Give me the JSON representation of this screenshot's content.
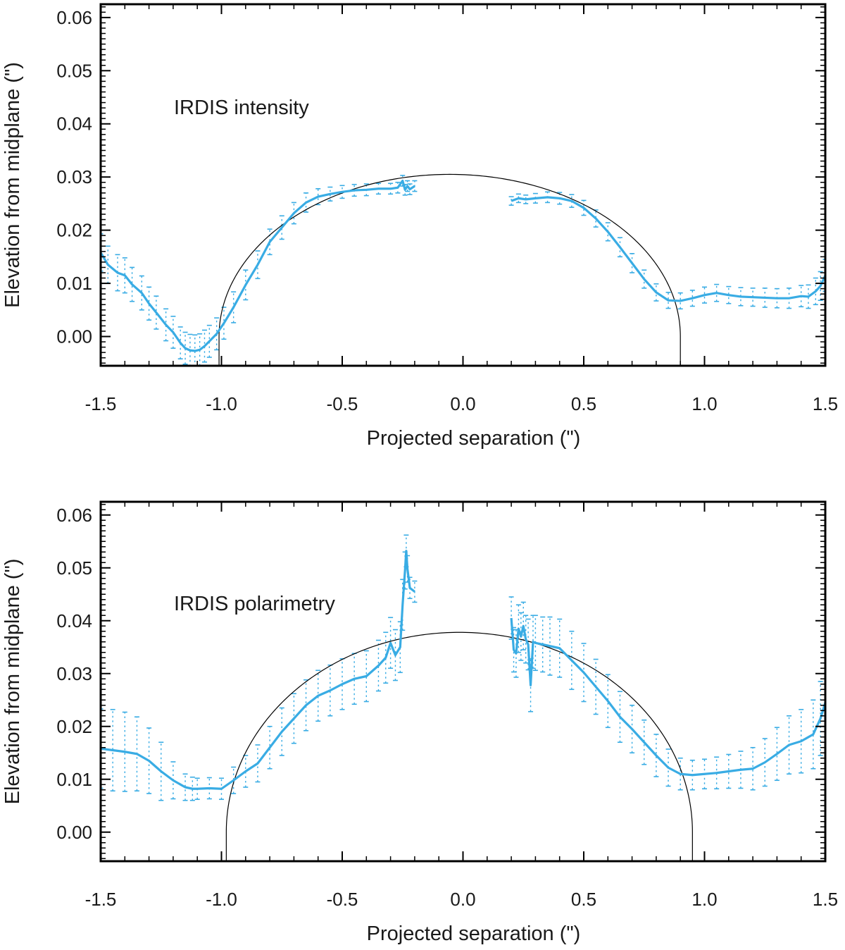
{
  "colors": {
    "series": "#39ACE4",
    "model": "#000000",
    "axis": "#000000"
  },
  "chart_data": [
    {
      "type": "line",
      "id": "intensity",
      "annotation": "IRDIS intensity",
      "xlabel": "Projected separation (\")",
      "ylabel": "Elevation from midplane (\")",
      "xlim": [
        -1.5,
        1.5
      ],
      "ylim": [
        -0.0055,
        0.0625
      ],
      "xticks": [
        -1.5,
        -1.0,
        -0.5,
        0.0,
        0.5,
        1.0,
        1.5
      ],
      "xtick_labels": [
        "-1.5",
        "-1.0",
        "-0.5",
        "0.0",
        "0.5",
        "1.0",
        "1.5"
      ],
      "yticks": [
        0.0,
        0.01,
        0.02,
        0.03,
        0.04,
        0.05,
        0.06
      ],
      "ytick_labels": [
        "0.00",
        "0.01",
        "0.02",
        "0.03",
        "0.04",
        "0.05",
        "0.06"
      ],
      "model_ellipse": {
        "center_x": -0.055,
        "half_width": 0.955,
        "height": 0.0305
      },
      "segments": [
        {
          "name": "left",
          "x": [
            -1.5,
            -1.47,
            -1.43,
            -1.4,
            -1.37,
            -1.33,
            -1.3,
            -1.27,
            -1.23,
            -1.2,
            -1.17,
            -1.15,
            -1.13,
            -1.11,
            -1.09,
            -1.07,
            -1.05,
            -1.02,
            -0.99,
            -0.95,
            -0.9,
            -0.85,
            -0.8,
            -0.75,
            -0.7,
            -0.65,
            -0.6,
            -0.55,
            -0.5,
            -0.45,
            -0.4,
            -0.35,
            -0.3,
            -0.27,
            -0.25,
            -0.24,
            -0.23,
            -0.22,
            -0.2
          ],
          "y": [
            0.0158,
            0.0135,
            0.012,
            0.0115,
            0.0098,
            0.0082,
            0.0062,
            0.0045,
            0.0022,
            0.0008,
            -0.0012,
            -0.0022,
            -0.0026,
            -0.0027,
            -0.0025,
            -0.0018,
            -0.0009,
            0.0005,
            0.0025,
            0.0055,
            0.0097,
            0.0135,
            0.0178,
            0.0205,
            0.0232,
            0.0252,
            0.0263,
            0.0268,
            0.0272,
            0.0275,
            0.0276,
            0.0278,
            0.0278,
            0.028,
            0.0293,
            0.0276,
            0.0283,
            0.0277,
            0.0283
          ],
          "err": [
            0.0035,
            0.0035,
            0.0034,
            0.0033,
            0.0032,
            0.0032,
            0.0031,
            0.0031,
            0.003,
            0.003,
            0.003,
            0.003,
            0.003,
            0.003,
            0.003,
            0.003,
            0.003,
            0.003,
            0.003,
            0.0029,
            0.0028,
            0.0026,
            0.0024,
            0.0022,
            0.002,
            0.0018,
            0.0015,
            0.0013,
            0.0012,
            0.0011,
            0.0011,
            0.001,
            0.001,
            0.001,
            0.001,
            0.001,
            0.001,
            0.001,
            0.001
          ]
        },
        {
          "name": "right",
          "x": [
            0.2,
            0.23,
            0.26,
            0.3,
            0.35,
            0.4,
            0.45,
            0.5,
            0.55,
            0.6,
            0.65,
            0.7,
            0.75,
            0.8,
            0.85,
            0.9,
            0.95,
            1.0,
            1.05,
            1.1,
            1.15,
            1.2,
            1.25,
            1.3,
            1.35,
            1.4,
            1.43,
            1.46,
            1.48,
            1.5
          ],
          "y": [
            0.0255,
            0.026,
            0.0258,
            0.026,
            0.0262,
            0.026,
            0.0255,
            0.0242,
            0.0222,
            0.0197,
            0.0168,
            0.0138,
            0.0108,
            0.0083,
            0.0068,
            0.0067,
            0.0072,
            0.0078,
            0.0082,
            0.0078,
            0.0075,
            0.0074,
            0.0073,
            0.0072,
            0.0072,
            0.0076,
            0.0075,
            0.0085,
            0.0095,
            0.0115
          ],
          "err": [
            0.0008,
            0.0008,
            0.0008,
            0.0009,
            0.001,
            0.0011,
            0.0012,
            0.0014,
            0.0016,
            0.0017,
            0.0018,
            0.0018,
            0.0017,
            0.0016,
            0.0015,
            0.0015,
            0.0015,
            0.0015,
            0.0016,
            0.0016,
            0.0017,
            0.0017,
            0.0018,
            0.0018,
            0.0019,
            0.002,
            0.0022,
            0.0025,
            0.0027,
            0.003
          ]
        }
      ]
    },
    {
      "type": "line",
      "id": "polarimetry",
      "annotation": "IRDIS polarimetry",
      "xlabel": "Projected separation (\")",
      "ylabel": "Elevation from midplane (\")",
      "xlim": [
        -1.5,
        1.5
      ],
      "ylim": [
        -0.0055,
        0.0625
      ],
      "xticks": [
        -1.5,
        -1.0,
        -0.5,
        0.0,
        0.5,
        1.0,
        1.5
      ],
      "xtick_labels": [
        "-1.5",
        "-1.0",
        "-0.5",
        "0.0",
        "0.5",
        "1.0",
        "1.5"
      ],
      "yticks": [
        0.0,
        0.01,
        0.02,
        0.03,
        0.04,
        0.05,
        0.06
      ],
      "ytick_labels": [
        "0.00",
        "0.01",
        "0.02",
        "0.03",
        "0.04",
        "0.05",
        "0.06"
      ],
      "model_ellipse": {
        "center_x": -0.015,
        "half_width": 0.965,
        "height": 0.0378
      },
      "segments": [
        {
          "name": "left",
          "x": [
            -1.5,
            -1.45,
            -1.4,
            -1.35,
            -1.3,
            -1.25,
            -1.2,
            -1.15,
            -1.12,
            -1.1,
            -1.05,
            -1.0,
            -0.95,
            -0.9,
            -0.85,
            -0.8,
            -0.75,
            -0.7,
            -0.65,
            -0.6,
            -0.55,
            -0.5,
            -0.45,
            -0.4,
            -0.35,
            -0.32,
            -0.3,
            -0.28,
            -0.26,
            -0.25,
            -0.24,
            -0.235,
            -0.23,
            -0.22,
            -0.2
          ],
          "y": [
            0.0158,
            0.0155,
            0.0152,
            0.0148,
            0.0135,
            0.0115,
            0.0098,
            0.0085,
            0.0082,
            0.0082,
            0.0083,
            0.0082,
            0.0098,
            0.0115,
            0.013,
            0.016,
            0.019,
            0.0215,
            0.024,
            0.0258,
            0.0268,
            0.028,
            0.029,
            0.0295,
            0.0315,
            0.033,
            0.0358,
            0.0335,
            0.035,
            0.043,
            0.0495,
            0.0532,
            0.0498,
            0.0462,
            0.0455
          ],
          "err": [
            0.0075,
            0.0077,
            0.0075,
            0.007,
            0.0062,
            0.0055,
            0.0035,
            0.0025,
            0.0022,
            0.002,
            0.002,
            0.002,
            0.0025,
            0.003,
            0.0035,
            0.004,
            0.0045,
            0.0047,
            0.0048,
            0.0048,
            0.0048,
            0.0048,
            0.0048,
            0.0048,
            0.0048,
            0.0048,
            0.0048,
            0.0048,
            0.0048,
            0.0048,
            0.0035,
            0.003,
            0.0025,
            0.002,
            0.002
          ]
        },
        {
          "name": "right",
          "x": [
            0.2,
            0.21,
            0.22,
            0.23,
            0.24,
            0.25,
            0.26,
            0.27,
            0.28,
            0.29,
            0.3,
            0.33,
            0.36,
            0.4,
            0.45,
            0.5,
            0.55,
            0.6,
            0.65,
            0.7,
            0.75,
            0.8,
            0.85,
            0.9,
            0.95,
            1.0,
            1.05,
            1.1,
            1.15,
            1.2,
            1.25,
            1.3,
            1.35,
            1.4,
            1.45,
            1.48,
            1.5
          ],
          "y": [
            0.0405,
            0.0345,
            0.0338,
            0.0385,
            0.037,
            0.039,
            0.0365,
            0.0355,
            0.0278,
            0.036,
            0.0358,
            0.0355,
            0.0352,
            0.0348,
            0.0325,
            0.0302,
            0.0275,
            0.0248,
            0.0218,
            0.0195,
            0.017,
            0.0145,
            0.0122,
            0.011,
            0.0108,
            0.011,
            0.0112,
            0.0115,
            0.0118,
            0.012,
            0.0132,
            0.0148,
            0.0165,
            0.0172,
            0.0185,
            0.0215,
            0.0245
          ],
          "err": [
            0.004,
            0.0042,
            0.0045,
            0.0045,
            0.0045,
            0.0045,
            0.0045,
            0.0048,
            0.005,
            0.005,
            0.0052,
            0.0052,
            0.0055,
            0.0055,
            0.0055,
            0.0055,
            0.0052,
            0.005,
            0.0048,
            0.0045,
            0.0042,
            0.004,
            0.0035,
            0.003,
            0.0028,
            0.0028,
            0.003,
            0.0032,
            0.0035,
            0.004,
            0.0045,
            0.005,
            0.0055,
            0.006,
            0.0065,
            0.007,
            0.0075
          ]
        }
      ]
    }
  ]
}
